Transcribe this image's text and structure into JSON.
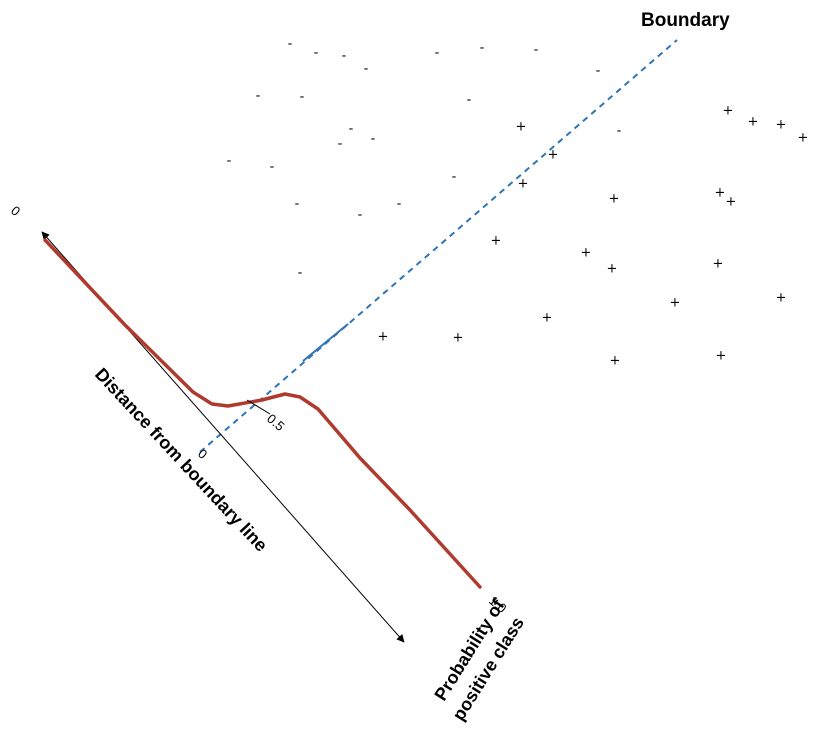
{
  "labels": {
    "boundary": "Boundary",
    "axis_title": "Distance from boundary line",
    "prob_line1": "Probability of",
    "prob_line2": "positive class",
    "tick_zero_axis": "0",
    "tick_zero_boundary": "0",
    "tick_half": "0.5",
    "tick_one": "1.0"
  },
  "markers": {
    "negative_symbol": "-",
    "positive_symbol": "+"
  },
  "colors": {
    "curve": "#b03a2e",
    "boundary_line": "#2e75b6",
    "axis": "#000000"
  }
}
